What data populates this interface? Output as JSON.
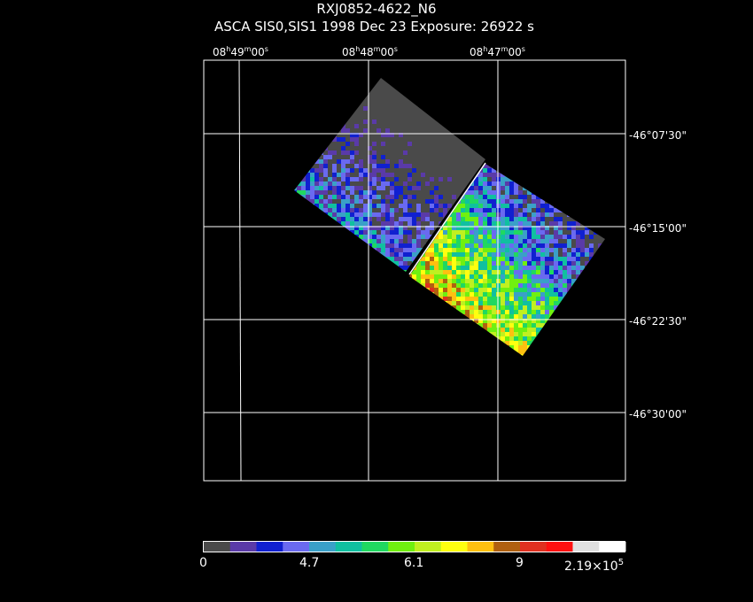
{
  "header": {
    "title": "RXJ0852-4622_N6",
    "subtitle": "ASCA SIS0,SIS1    1998 Dec 23    Exposure: 26922 s"
  },
  "ra_ticks": [
    {
      "h": "08",
      "hu": "h",
      "m": "49",
      "mu": "m",
      "s": "00",
      "su": "s"
    },
    {
      "h": "08",
      "hu": "h",
      "m": "48",
      "mu": "m",
      "s": "00",
      "su": "s"
    },
    {
      "h": "08",
      "hu": "h",
      "m": "47",
      "mu": "m",
      "s": "00",
      "su": "s"
    }
  ],
  "dec_ticks": [
    "-46°07'30\"",
    "-46°15'00\"",
    "-46°22'30\"",
    "-46°30'00\""
  ],
  "colorbar": {
    "colors": [
      "#4a4a4a",
      "#5a3aa8",
      "#1020d0",
      "#6a6af0",
      "#3aa0c8",
      "#10c0a0",
      "#20d860",
      "#70f010",
      "#c0f020",
      "#ffff10",
      "#ffc010",
      "#b06010",
      "#e03020",
      "#ff1010",
      "#e0e0e0",
      "#ffffff"
    ],
    "labels": [
      "0",
      "4.7",
      "6.1",
      "9",
      "2.19×10"
    ],
    "label_exp": "5"
  }
}
